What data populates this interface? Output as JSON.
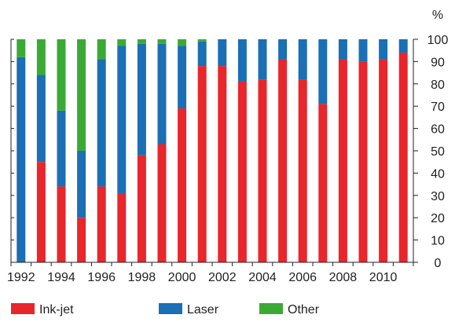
{
  "chart_data": {
    "type": "bar",
    "stacked": true,
    "unit_label": "%",
    "categories": [
      "1992",
      "1993",
      "1994",
      "1995",
      "1996",
      "1997",
      "1998",
      "1999",
      "2000",
      "2001",
      "2002",
      "2003",
      "2004",
      "2005",
      "2006",
      "2007",
      "2008",
      "2009",
      "2010",
      "2011"
    ],
    "x_tick_labels": [
      "1992",
      "1994",
      "1996",
      "1998",
      "2000",
      "2002",
      "2004",
      "2006",
      "2008",
      "2010"
    ],
    "y_ticks": [
      0,
      10,
      20,
      30,
      40,
      50,
      60,
      70,
      80,
      90,
      100
    ],
    "ylim": [
      0,
      100
    ],
    "y_axis_position": "right",
    "grid": false,
    "legend_position": "bottom",
    "series": [
      {
        "name": "Ink-jet",
        "color": "#e8262b",
        "values": [
          0,
          45,
          34,
          20,
          34,
          31,
          48,
          53,
          69,
          88,
          88,
          81,
          82,
          91,
          82,
          71,
          91,
          90,
          91,
          94
        ]
      },
      {
        "name": "Laser",
        "color": "#1a6fb5",
        "values": [
          92,
          39,
          34,
          30,
          57,
          66,
          50,
          45,
          28,
          11,
          12,
          19,
          18,
          9,
          18,
          29,
          9,
          10,
          9,
          6
        ]
      },
      {
        "name": "Other",
        "color": "#3aaa35",
        "values": [
          8,
          16,
          32,
          50,
          9,
          3,
          2,
          2,
          3,
          1,
          0,
          0,
          0,
          0,
          0,
          0,
          0,
          0,
          0,
          0
        ]
      }
    ]
  }
}
